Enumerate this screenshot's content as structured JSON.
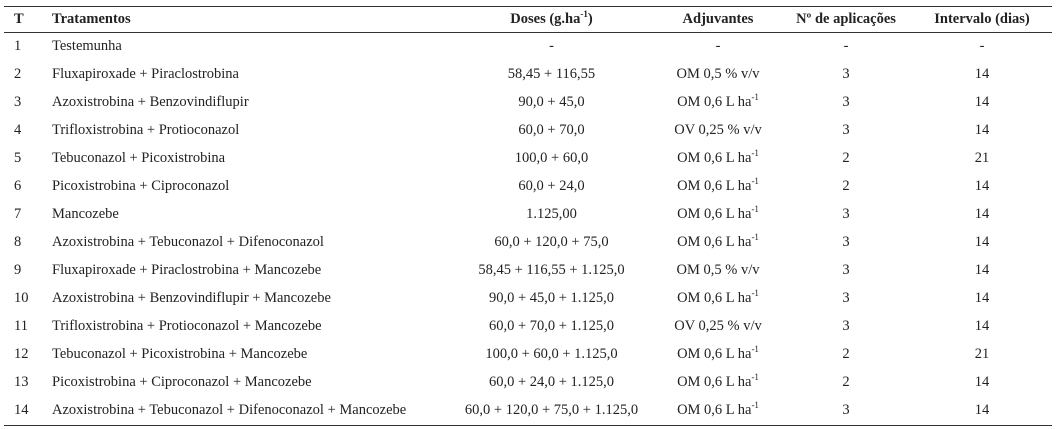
{
  "table": {
    "headers": {
      "t": "T",
      "tratamentos": "Tratamentos",
      "doses_main": "Doses (g.ha",
      "doses_sup": "-1",
      "doses_tail": ")",
      "adjuvantes": "Adjuvantes",
      "aplicacoes": "Nº de aplicações",
      "intervalo": "Intervalo (dias)"
    },
    "rows": [
      {
        "t": "1",
        "tratamento": "Testemunha",
        "doses": "-",
        "adj": "-",
        "adj_sup": "",
        "aplic": "-",
        "intervalo": "-"
      },
      {
        "t": "2",
        "tratamento": "Fluxapiroxade + Piraclostrobina",
        "doses": "58,45 + 116,55",
        "adj": "OM 0,5 % v/v",
        "adj_sup": "",
        "aplic": "3",
        "intervalo": "14"
      },
      {
        "t": "3",
        "tratamento": "Azoxistrobina + Benzovindiflupir",
        "doses": "90,0 + 45,0",
        "adj": "OM 0,6 L ha",
        "adj_sup": "-1",
        "aplic": "3",
        "intervalo": "14"
      },
      {
        "t": "4",
        "tratamento": "Trifloxistrobina + Protioconazol",
        "doses": "60,0 + 70,0",
        "adj": "OV 0,25 % v/v",
        "adj_sup": "",
        "aplic": "3",
        "intervalo": "14"
      },
      {
        "t": "5",
        "tratamento": "Tebuconazol + Picoxistrobina",
        "doses": "100,0 + 60,0",
        "adj": "OM 0,6 L ha",
        "adj_sup": "-1",
        "aplic": "2",
        "intervalo": "21"
      },
      {
        "t": "6",
        "tratamento": "Picoxistrobina + Ciproconazol",
        "doses": "60,0 + 24,0",
        "adj": "OM 0,6 L ha",
        "adj_sup": "-1",
        "aplic": "2",
        "intervalo": "14"
      },
      {
        "t": "7",
        "tratamento": "Mancozebe",
        "doses": "1.125,00",
        "adj": "OM 0,6 L ha",
        "adj_sup": "-1",
        "aplic": "3",
        "intervalo": "14"
      },
      {
        "t": "8",
        "tratamento": "Azoxistrobina + Tebuconazol + Difenoconazol",
        "doses": "60,0 + 120,0 + 75,0",
        "adj": "OM 0,6 L ha",
        "adj_sup": "-1",
        "aplic": "3",
        "intervalo": "14"
      },
      {
        "t": "9",
        "tratamento": "Fluxapiroxade + Piraclostrobina + Mancozebe",
        "doses": "58,45 + 116,55 + 1.125,0",
        "adj": "OM 0,5 % v/v",
        "adj_sup": "",
        "aplic": "3",
        "intervalo": "14"
      },
      {
        "t": "10",
        "tratamento": "Azoxistrobina + Benzovindiflupir + Mancozebe",
        "doses": "90,0 + 45,0 + 1.125,0",
        "adj": "OM 0,6 L ha",
        "adj_sup": "-1",
        "aplic": "3",
        "intervalo": "14"
      },
      {
        "t": "11",
        "tratamento": "Trifloxistrobina + Protioconazol + Mancozebe",
        "doses": "60,0 + 70,0 + 1.125,0",
        "adj": "OV 0,25 % v/v",
        "adj_sup": "",
        "aplic": "3",
        "intervalo": "14"
      },
      {
        "t": "12",
        "tratamento": "Tebuconazol + Picoxistrobina + Mancozebe",
        "doses": "100,0 + 60,0 + 1.125,0",
        "adj": "OM 0,6 L ha",
        "adj_sup": "-1",
        "aplic": "2",
        "intervalo": "21"
      },
      {
        "t": "13",
        "tratamento": "Picoxistrobina + Ciproconazol + Mancozebe",
        "doses": "60,0 + 24,0 + 1.125,0",
        "adj": "OM 0,6 L ha",
        "adj_sup": "-1",
        "aplic": "2",
        "intervalo": "14"
      },
      {
        "t": "14",
        "tratamento": "Azoxistrobina + Tebuconazol + Difenoconazol + Mancozebe",
        "doses": "60,0 + 120,0 + 75,0 + 1.125,0",
        "adj": "OM 0,6 L ha",
        "adj_sup": "-1",
        "aplic": "3",
        "intervalo": "14"
      }
    ]
  }
}
